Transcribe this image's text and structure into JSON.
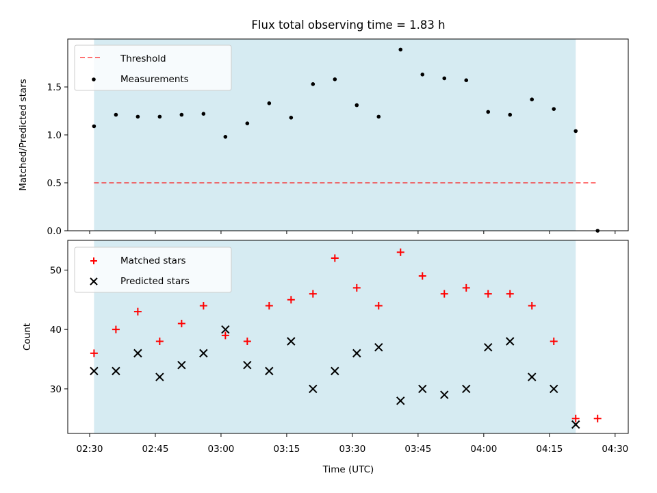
{
  "chart_data": {
    "title": "Flux total observing time = 1.83 h",
    "xlabel": "Time (UTC)",
    "x_tick_labels": [
      "02:30",
      "02:45",
      "03:00",
      "03:15",
      "03:30",
      "03:45",
      "04:00",
      "04:15",
      "04:30"
    ],
    "colors": {
      "shade": "#add8e6",
      "threshold": "#ff0000",
      "matched": "#ff0000",
      "predicted": "#000000",
      "measurements": "#000000"
    },
    "panels": [
      {
        "type": "scatter",
        "ylabel": "Matched/Predicted stars",
        "ylim": [
          0,
          2.0
        ],
        "y_ticks": [
          "0.0",
          "0.5",
          "1.0",
          "1.5"
        ],
        "xlim": [
          "02:25",
          "04:33"
        ],
        "shaded_span": [
          "02:31",
          "04:21"
        ],
        "legend_position": "upper-left",
        "threshold": {
          "name": "Threshold",
          "value": 0.5,
          "x_range": [
            "02:31",
            "04:26"
          ]
        },
        "series": [
          {
            "name": "Measurements",
            "x": [
              "02:31",
              "02:36",
              "02:41",
              "02:46",
              "02:51",
              "02:56",
              "03:01",
              "03:06",
              "03:11",
              "03:16",
              "03:21",
              "03:26",
              "03:31",
              "03:36",
              "03:41",
              "03:46",
              "03:51",
              "03:56",
              "04:01",
              "04:06",
              "04:11",
              "04:16",
              "04:21",
              "04:26"
            ],
            "y": [
              1.09,
              1.21,
              1.19,
              1.19,
              1.21,
              1.22,
              0.98,
              1.12,
              1.33,
              1.18,
              1.53,
              1.58,
              1.31,
              1.19,
              1.89,
              1.63,
              1.59,
              1.57,
              1.24,
              1.21,
              1.37,
              1.27,
              1.04,
              0.0
            ]
          }
        ]
      },
      {
        "type": "scatter",
        "ylabel": "Count",
        "ylim": [
          22.5,
          55
        ],
        "y_ticks": [
          "30",
          "40",
          "50"
        ],
        "xlim": [
          "02:25",
          "04:33"
        ],
        "shaded_span": [
          "02:31",
          "04:21"
        ],
        "legend_position": "upper-left",
        "series": [
          {
            "name": "Matched stars",
            "marker": "+",
            "x": [
              "02:31",
              "02:36",
              "02:41",
              "02:46",
              "02:51",
              "02:56",
              "03:01",
              "03:06",
              "03:11",
              "03:16",
              "03:21",
              "03:26",
              "03:31",
              "03:36",
              "03:41",
              "03:46",
              "03:51",
              "03:56",
              "04:01",
              "04:06",
              "04:11",
              "04:16",
              "04:21",
              "04:26"
            ],
            "y": [
              36,
              40,
              43,
              38,
              41,
              44,
              39,
              38,
              44,
              45,
              46,
              52,
              47,
              44,
              53,
              49,
              46,
              47,
              46,
              46,
              44,
              38,
              25,
              25
            ]
          },
          {
            "name": "Predicted stars",
            "marker": "x",
            "x": [
              "02:31",
              "02:36",
              "02:41",
              "02:46",
              "02:51",
              "02:56",
              "03:01",
              "03:06",
              "03:11",
              "03:16",
              "03:21",
              "03:26",
              "03:31",
              "03:36",
              "03:41",
              "03:46",
              "03:51",
              "03:56",
              "04:01",
              "04:06",
              "04:11",
              "04:16",
              "04:21"
            ],
            "y": [
              33,
              33,
              36,
              32,
              34,
              36,
              40,
              34,
              33,
              38,
              30,
              33,
              36,
              37,
              28,
              30,
              29,
              30,
              37,
              38,
              32,
              30,
              24
            ]
          }
        ]
      }
    ]
  }
}
